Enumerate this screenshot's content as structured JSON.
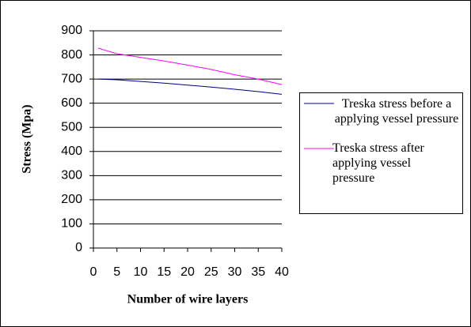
{
  "chart_data": {
    "type": "line",
    "x_label": "Number of wire layers",
    "y_label": "Stress (Mpa)",
    "x": [
      1,
      5,
      10,
      15,
      20,
      25,
      30,
      35,
      40
    ],
    "series": [
      {
        "name": "Treska stress before a applying vessel pressure",
        "color": "#000080",
        "values": [
          700,
          697,
          690,
          683,
          675,
          667,
          658,
          648,
          637
        ]
      },
      {
        "name": "Treska stress after applying vessel pressure",
        "color": "#ff00ff",
        "values": [
          828,
          805,
          790,
          775,
          758,
          740,
          718,
          700,
          677
        ]
      }
    ],
    "xlim": [
      0,
      40
    ],
    "xticks": [
      0,
      5,
      10,
      15,
      20,
      25,
      30,
      35,
      40
    ],
    "ylim": [
      0,
      900
    ],
    "yticks": [
      0,
      100,
      200,
      300,
      400,
      500,
      600,
      700,
      800,
      900
    ],
    "grid": true,
    "legend": "right"
  }
}
